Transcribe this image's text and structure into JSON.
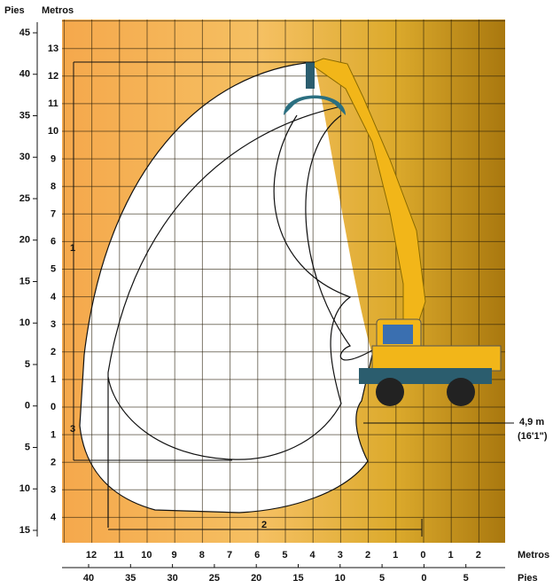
{
  "axis_labels": {
    "left_feet": "Pies",
    "left_meters": "Metros",
    "bottom_meters": "Metros",
    "bottom_feet": "Pies"
  },
  "left_feet_ticks": [
    "45",
    "40",
    "35",
    "30",
    "25",
    "20",
    "15",
    "10",
    "5",
    "0",
    "5",
    "10",
    "15"
  ],
  "left_meter_ticks": [
    "13",
    "12",
    "11",
    "10",
    "9",
    "8",
    "7",
    "6",
    "5",
    "4",
    "3",
    "2",
    "1",
    "0",
    "1",
    "2",
    "3",
    "4"
  ],
  "bottom_meter_ticks": [
    "12",
    "11",
    "10",
    "9",
    "8",
    "7",
    "6",
    "5",
    "4",
    "3",
    "2",
    "1",
    "0",
    "1",
    "2"
  ],
  "bottom_feet_ticks": [
    "40",
    "35",
    "30",
    "25",
    "20",
    "15",
    "10",
    "5",
    "0",
    "5"
  ],
  "dimensions": {
    "reach_height": "1",
    "reach_length": "2",
    "dig_depth": "3",
    "clearance": "4,9 m",
    "clearance_feet": "(16'1\")"
  }
}
